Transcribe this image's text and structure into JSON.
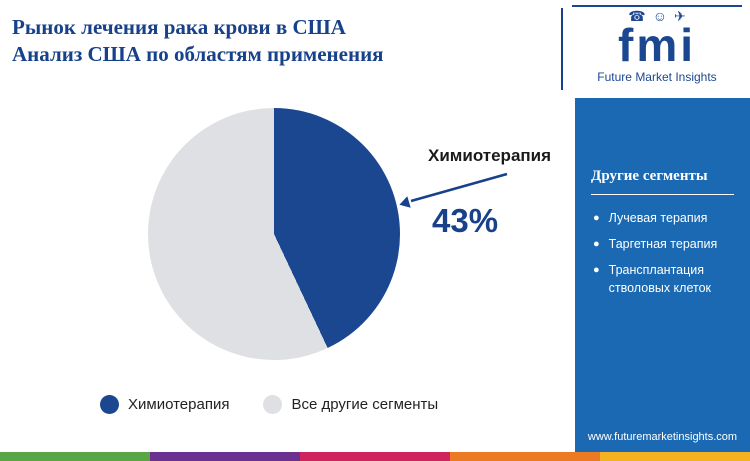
{
  "header": {
    "title_line1": "Рынок лечения рака крови в США",
    "title_line2": "Анализ США по областям применения"
  },
  "logo": {
    "name": "fmi",
    "tagline": "Future Market Insights",
    "icons": [
      {
        "name": "phone-icon",
        "glyph": "☎"
      },
      {
        "name": "person-icon",
        "glyph": "☺"
      },
      {
        "name": "plane-icon",
        "glyph": "✈"
      }
    ]
  },
  "chart_data": {
    "type": "pie",
    "title": "Рынок лечения рака крови в США — Анализ США по областям применения",
    "categories": [
      "Химиотерапия",
      "Все другие сегменты"
    ],
    "values": [
      43,
      57
    ],
    "unit": "%",
    "colors": [
      "#1b4790",
      "#dfe0e3"
    ],
    "callout": {
      "label": "Химиотерапия",
      "value_label": "43%"
    },
    "legend_position": "bottom"
  },
  "legend": {
    "items": [
      {
        "label": "Химиотерапия"
      },
      {
        "label": "Все другие сегменты"
      }
    ]
  },
  "sidebar": {
    "heading": "Другие сегменты",
    "items": [
      "Лучевая терапия",
      "Таргетная терапия",
      "Трансплантация стволовых клеток"
    ],
    "website": "www.futuremarketinsights.com",
    "background": "#1a69b2"
  },
  "footer_stripe": {
    "colors": [
      "#5aa646",
      "#6a3190",
      "#d0245e",
      "#ec7a23",
      "#f4b223"
    ]
  }
}
